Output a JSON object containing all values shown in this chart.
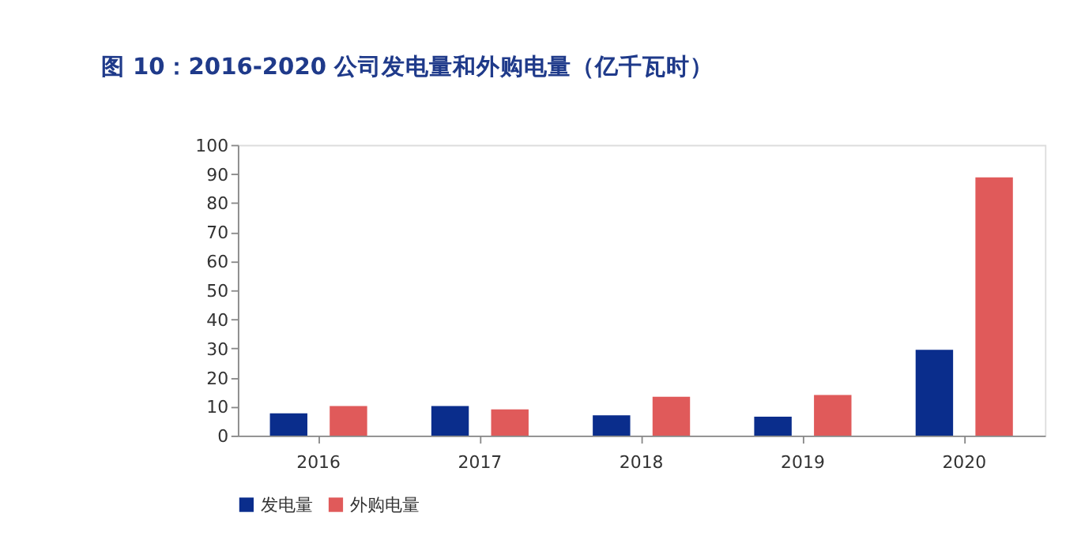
{
  "chart_data": {
    "type": "bar",
    "title": "图 10：2016-2020 公司发电量和外购电量（亿千瓦时）",
    "categories": [
      "2016",
      "2017",
      "2018",
      "2019",
      "2020"
    ],
    "series": [
      {
        "name": "发电量",
        "color": "#0a2d8c",
        "values": [
          7.7,
          10.2,
          7,
          6.5,
          29.5
        ]
      },
      {
        "name": "外购电量",
        "color": "#e05a5a",
        "values": [
          10.2,
          9,
          13.4,
          14,
          88.8
        ]
      }
    ],
    "ylim": [
      0,
      100
    ],
    "yticks": [
      0,
      10,
      20,
      30,
      40,
      50,
      60,
      70,
      80,
      90,
      100
    ],
    "grid": false,
    "legend": "bottom"
  }
}
